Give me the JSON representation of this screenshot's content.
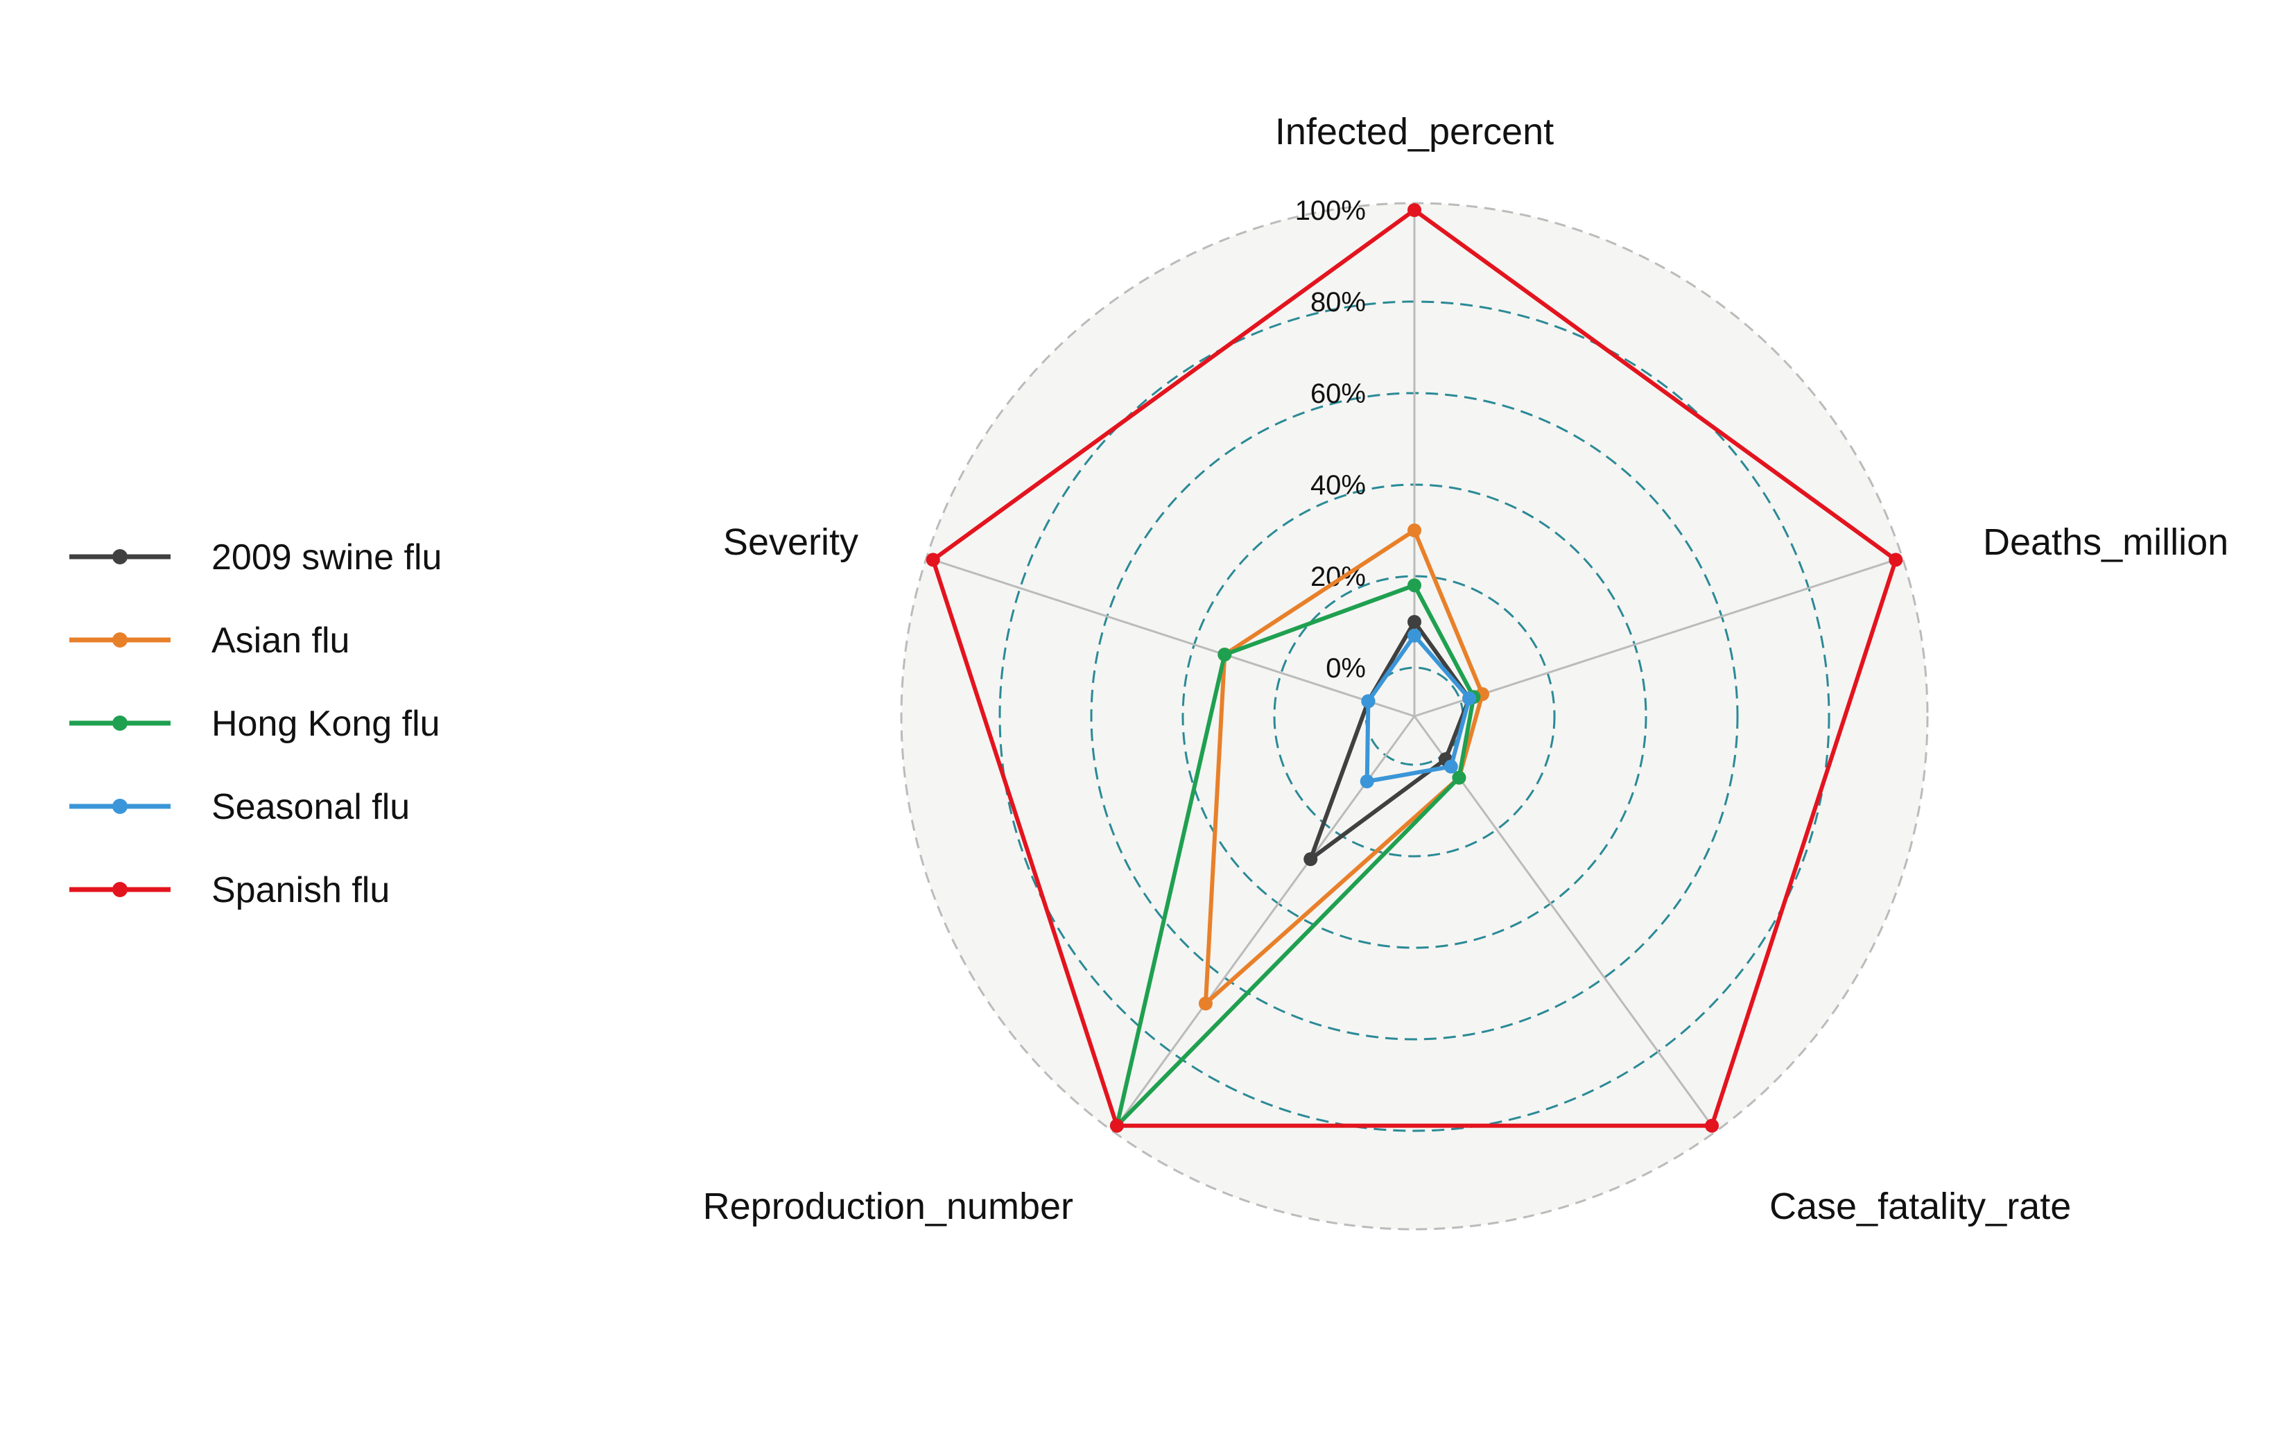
{
  "chart_data": {
    "type": "radar",
    "axes": [
      "Infected_percent",
      "Deaths_million",
      "Case_fatality_rate",
      "Reproduction_number",
      "Severity"
    ],
    "radial_ticks": [
      "0%",
      "20%",
      "40%",
      "60%",
      "80%",
      "100%"
    ],
    "radial_range": [
      0,
      100
    ],
    "grid": true,
    "legend_position": "left",
    "series": [
      {
        "name": "2009 swine flu",
        "color": "#404040",
        "values": [
          10,
          2,
          1,
          28,
          0
        ]
      },
      {
        "name": "Asian flu",
        "color": "#e8802a",
        "values": [
          30,
          5,
          6,
          67,
          33
        ]
      },
      {
        "name": "Hong Kong flu",
        "color": "#1fa050",
        "values": [
          18,
          3,
          6,
          100,
          33
        ]
      },
      {
        "name": "Seasonal flu",
        "color": "#3a96d8",
        "values": [
          7,
          2,
          3,
          7,
          0
        ]
      },
      {
        "name": "Spanish flu",
        "color": "#e3141e",
        "values": [
          100,
          100,
          100,
          100,
          100
        ]
      }
    ]
  }
}
